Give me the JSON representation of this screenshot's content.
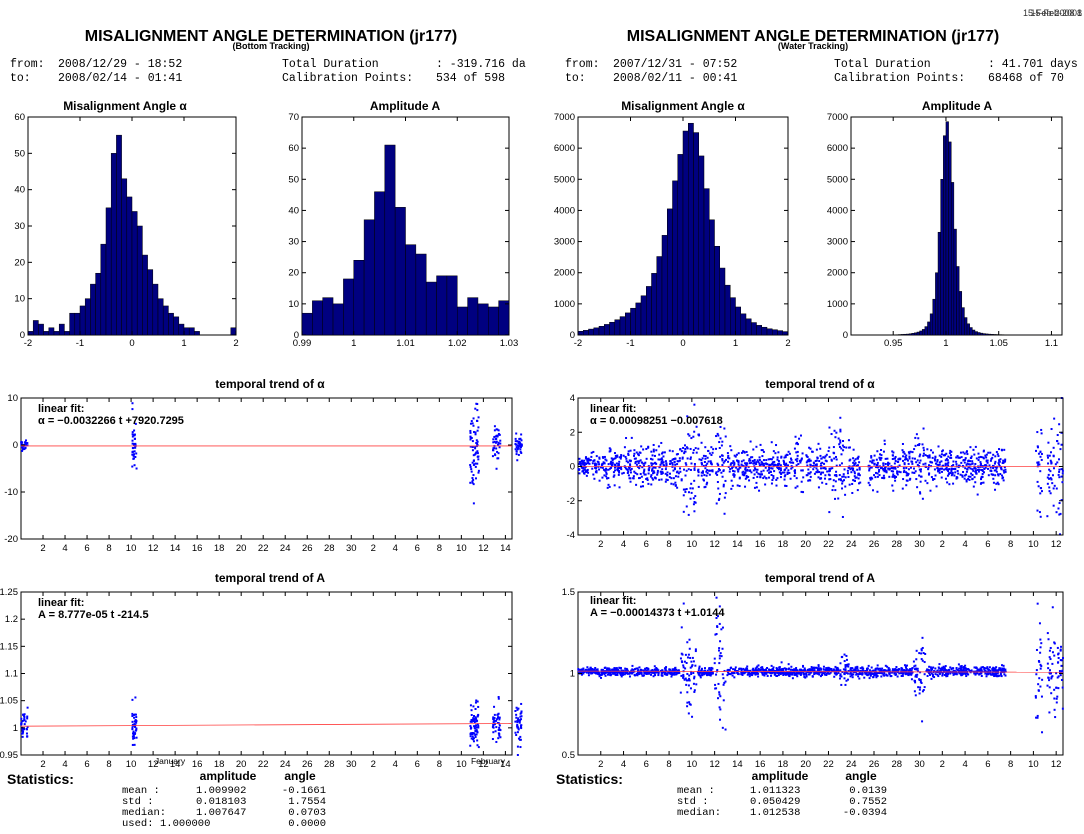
{
  "chart_data": [
    {
      "type": "report",
      "date": "15-Feb-2008",
      "title": "MISALIGNMENT ANGLE DETERMINATION (jr177)",
      "subtitle": "(Bottom Tracking)",
      "header": {
        "from_label": "from:",
        "from_value": "2008/12/29 - 18:52",
        "to_label": "to:",
        "to_value": "2008/02/14 - 01:41",
        "duration_label": "Total Duration",
        "duration_value": ": -319.716 da",
        "calib_label": "Calibration Points:",
        "calib_value": "534 of 598"
      },
      "histograms": [
        {
          "type": "bar",
          "title": "Misalignment Angle α",
          "xlim": [
            -2,
            2
          ],
          "ylim": [
            0,
            60
          ],
          "xticks": [
            -2,
            -1,
            0,
            1,
            2
          ],
          "xtick_labels": [
            "-2",
            "-1",
            "0",
            "1",
            "2"
          ],
          "yticks": [
            0,
            10,
            20,
            30,
            40,
            50,
            60
          ],
          "bin_start": -2,
          "bin_width": 0.1,
          "counts": [
            1,
            4,
            3,
            1,
            2,
            1,
            3,
            1,
            6,
            6,
            8,
            10,
            14,
            17,
            25,
            35,
            50,
            55,
            43,
            38,
            34,
            30,
            22,
            18,
            14,
            10,
            8,
            6,
            5,
            3,
            2,
            2,
            1,
            0,
            0,
            0,
            0,
            0,
            0,
            2
          ]
        },
        {
          "type": "bar",
          "title": "Amplitude A",
          "xlim": [
            0.99,
            1.03
          ],
          "ylim": [
            0,
            70
          ],
          "xticks": [
            0.99,
            1.0,
            1.01,
            1.02,
            1.03
          ],
          "xtick_labels": [
            "0.99",
            "1",
            "1.01",
            "1.02",
            "1.03"
          ],
          "yticks": [
            0,
            10,
            20,
            30,
            40,
            50,
            60,
            70
          ],
          "bin_start": 0.99,
          "bin_width": 0.002,
          "counts": [
            7,
            11,
            12,
            10,
            18,
            24,
            37,
            46,
            61,
            41,
            29,
            26,
            17,
            19,
            19,
            9,
            12,
            10,
            9,
            11,
            7
          ]
        }
      ],
      "trends": [
        {
          "type": "scatter",
          "title": "temporal trend of α",
          "fit_label": "linear fit:",
          "fit_equation": "α = −0.0032266 t +7920.7295",
          "ylim": [
            -20,
            10
          ],
          "yticks": [
            -20,
            -10,
            0,
            10
          ],
          "xtick_labels": [
            "2",
            "4",
            "6",
            "8",
            "10",
            "12",
            "14",
            "16",
            "18",
            "20",
            "22",
            "24",
            "26",
            "28",
            "30",
            "2",
            "4",
            "6",
            "8",
            "10",
            "12",
            "14"
          ],
          "fit_value": -0.2,
          "clusters": [
            {
              "x": 0.3,
              "spread": 0.6,
              "n": 35,
              "center": 0,
              "sd": 0.5
            },
            {
              "x": 10.3,
              "spread": 0.4,
              "n": 40,
              "center": 0,
              "sd": 2.5
            },
            {
              "x": 41.2,
              "spread": 0.8,
              "n": 70,
              "center": -1,
              "sd": 4.5
            },
            {
              "x": 43.2,
              "spread": 0.7,
              "n": 40,
              "center": 0,
              "sd": 2.2
            },
            {
              "x": 45.2,
              "spread": 0.6,
              "n": 40,
              "center": 0,
              "sd": 1.5
            }
          ]
        },
        {
          "type": "scatter",
          "title": "temporal trend of A",
          "fit_label": "linear fit:",
          "fit_equation": "A = 8.777e-05 t -214.5",
          "ylim": [
            0.95,
            1.25
          ],
          "yticks": [
            0.95,
            1.0,
            1.05,
            1.1,
            1.15,
            1.2,
            1.25
          ],
          "ytick_labels": [
            "0.95",
            "1",
            "1.05",
            "1.1",
            "1.15",
            "1.2",
            "1.25"
          ],
          "xtick_labels": [
            "2",
            "4",
            "6",
            "8",
            "10",
            "12",
            "14",
            "16",
            "18",
            "20",
            "22",
            "24",
            "26",
            "28",
            "30",
            "2",
            "4",
            "6",
            "8",
            "10",
            "12",
            "14"
          ],
          "month_labels": [
            "January",
            "February"
          ],
          "fit_start": 1.003,
          "fit_end": 1.008,
          "clusters": [
            {
              "x": 0.3,
              "spread": 0.6,
              "n": 35,
              "center": 1.01,
              "sd": 0.012
            },
            {
              "x": 10.3,
              "spread": 0.4,
              "n": 40,
              "center": 1.01,
              "sd": 0.02
            },
            {
              "x": 41.2,
              "spread": 0.8,
              "n": 70,
              "center": 1.005,
              "sd": 0.018
            },
            {
              "x": 43.2,
              "spread": 0.7,
              "n": 45,
              "center": 1.01,
              "sd": 0.018
            },
            {
              "x": 45.2,
              "spread": 0.6,
              "n": 45,
              "center": 1.01,
              "sd": 0.018
            }
          ]
        }
      ],
      "stats": {
        "heading": "Statistics:",
        "col_amplitude": "amplitude",
        "col_angle": "angle",
        "rows": [
          {
            "label": "mean   :",
            "amplitude": "1.009902",
            "angle": "-0.1661"
          },
          {
            "label": "std    :",
            "amplitude": "0.018103",
            "angle": "1.7554"
          },
          {
            "label": "median:",
            "amplitude": "1.007647",
            "angle": "0.0703"
          },
          {
            "label": "used:",
            "amplitude": "1.000000",
            "angle": "0.0000"
          }
        ]
      }
    },
    {
      "type": "report",
      "date": "15-Feb-2008 1",
      "title": "MISALIGNMENT ANGLE DETERMINATION (jr177)",
      "subtitle": "(Water Tracking)",
      "header": {
        "from_label": "from:",
        "from_value": "2007/12/31 - 07:52",
        "to_label": "to:",
        "to_value": "2008/02/11 - 00:41",
        "duration_label": "Total Duration",
        "duration_value": ": 41.701 days",
        "calib_label": "Calibration Points:",
        "calib_value": "68468 of 70"
      },
      "histograms": [
        {
          "type": "bar",
          "title": "Misalignment Angle α",
          "xlim": [
            -2,
            2
          ],
          "ylim": [
            0,
            7000
          ],
          "xticks": [
            -2,
            -1,
            0,
            1,
            2
          ],
          "xtick_labels": [
            "-2",
            "-1",
            "0",
            "1",
            "2"
          ],
          "yticks": [
            0,
            1000,
            2000,
            3000,
            4000,
            5000,
            6000,
            7000
          ],
          "bin_start": -2,
          "bin_width": 0.1,
          "counts": [
            120,
            150,
            190,
            230,
            280,
            340,
            410,
            490,
            590,
            710,
            860,
            1030,
            1260,
            1560,
            1980,
            2520,
            3200,
            4050,
            4950,
            5800,
            6550,
            6800,
            6500,
            5750,
            4700,
            3700,
            2850,
            2150,
            1600,
            1200,
            900,
            680,
            520,
            400,
            310,
            250,
            200,
            170,
            140,
            110
          ]
        },
        {
          "type": "bar",
          "title": "Amplitude A",
          "xlim": [
            0.91,
            1.11
          ],
          "ylim": [
            0,
            7000
          ],
          "xticks": [
            0.95,
            1.0,
            1.05,
            1.1
          ],
          "xtick_labels": [
            "0.95",
            "1",
            "1.05",
            "1.1"
          ],
          "yticks": [
            0,
            1000,
            2000,
            3000,
            4000,
            5000,
            6000,
            7000
          ],
          "bin_start": 0.91,
          "bin_width": 0.0025,
          "counts": [
            0,
            0,
            0,
            0,
            0,
            0,
            0,
            0,
            0,
            0,
            0,
            0,
            0,
            0,
            0,
            0,
            0,
            10,
            15,
            20,
            25,
            30,
            40,
            55,
            70,
            95,
            130,
            180,
            270,
            420,
            680,
            1150,
            2000,
            3300,
            5000,
            6400,
            6850,
            6200,
            4900,
            3400,
            2200,
            1400,
            880,
            560,
            360,
            240,
            160,
            110,
            80,
            60,
            45,
            35,
            28,
            22,
            18,
            15,
            12,
            10,
            8,
            7,
            6,
            5,
            4,
            4,
            3,
            3,
            3,
            2,
            2,
            2,
            2,
            2,
            1,
            1,
            1,
            1,
            1,
            1,
            1,
            1
          ]
        }
      ],
      "trends": [
        {
          "type": "scatter",
          "title": "temporal trend of α",
          "fit_label": "linear fit:",
          "fit_equation": "α = 0.00098251 −0.007618",
          "ylim": [
            -4,
            4
          ],
          "yticks": [
            -4,
            -2,
            0,
            2,
            4
          ],
          "xtick_labels": [
            "2",
            "4",
            "6",
            "8",
            "10",
            "12",
            "14",
            "16",
            "18",
            "20",
            "22",
            "24",
            "26",
            "28",
            "30",
            "2",
            "4",
            "6",
            "8",
            "10",
            "12"
          ],
          "fit_value": 0.0,
          "bands": [
            {
              "x0": 0.0,
              "x1": 1.9,
              "sd": 0.35
            },
            {
              "x0": 2.0,
              "x1": 3.9,
              "sd": 0.5
            },
            {
              "x0": 4.0,
              "x1": 7.9,
              "sd": 0.55
            },
            {
              "x0": 8.0,
              "x1": 9.0,
              "sd": 0.6
            },
            {
              "x0": 9.1,
              "x1": 10.7,
              "sd": 1.3
            },
            {
              "x0": 10.8,
              "x1": 11.9,
              "sd": 0.6
            },
            {
              "x0": 12.0,
              "x1": 13.0,
              "sd": 1.4
            },
            {
              "x0": 13.1,
              "x1": 18.9,
              "sd": 0.55
            },
            {
              "x0": 19.0,
              "x1": 19.8,
              "sd": 1.0
            },
            {
              "x0": 20.0,
              "x1": 21.9,
              "sd": 0.55
            },
            {
              "x0": 22.0,
              "x1": 23.6,
              "sd": 1.0
            },
            {
              "x0": 23.7,
              "x1": 24.9,
              "sd": 0.6
            },
            {
              "x0": 25.5,
              "x1": 29.4,
              "sd": 0.55
            },
            {
              "x0": 29.5,
              "x1": 30.4,
              "sd": 1.0
            },
            {
              "x0": 30.5,
              "x1": 37.6,
              "sd": 0.55
            },
            {
              "x0": 40.2,
              "x1": 40.8,
              "sd": 1.4
            },
            {
              "x0": 41.2,
              "x1": 42.6,
              "sd": 1.6
            },
            {
              "x0": 44.6,
              "x1": 45.0,
              "sd": 0.5
            }
          ]
        },
        {
          "type": "scatter",
          "title": "temporal trend of A",
          "fit_label": "linear fit:",
          "fit_equation": "A = −0.00014373 t +1.0144",
          "ylim": [
            0.5,
            1.5
          ],
          "yticks": [
            0.5,
            1.0,
            1.5
          ],
          "ytick_labels": [
            "0.5",
            "1",
            "1.5"
          ],
          "xtick_labels": [
            "2",
            "4",
            "6",
            "8",
            "10",
            "12",
            "14",
            "16",
            "18",
            "20",
            "22",
            "24",
            "26",
            "28",
            "30",
            "2",
            "4",
            "6",
            "8",
            "10",
            "12"
          ],
          "fit_start": 1.0144,
          "fit_end": 1.008,
          "bands": [
            {
              "x0": 0.0,
              "x1": 8.9,
              "sd": 0.012
            },
            {
              "x0": 9.0,
              "x1": 10.4,
              "sd": 0.12
            },
            {
              "x0": 10.5,
              "x1": 11.9,
              "sd": 0.015
            },
            {
              "x0": 12.0,
              "x1": 13.0,
              "sd": 0.18
            },
            {
              "x0": 13.1,
              "x1": 22.9,
              "sd": 0.015
            },
            {
              "x0": 23.0,
              "x1": 23.8,
              "sd": 0.04
            },
            {
              "x0": 23.9,
              "x1": 29.4,
              "sd": 0.015
            },
            {
              "x0": 29.5,
              "x1": 30.5,
              "sd": 0.09
            },
            {
              "x0": 30.6,
              "x1": 37.6,
              "sd": 0.015
            },
            {
              "x0": 40.2,
              "x1": 40.8,
              "sd": 0.16
            },
            {
              "x0": 41.2,
              "x1": 42.6,
              "sd": 0.15
            },
            {
              "x0": 44.6,
              "x1": 45.0,
              "sd": 0.012
            }
          ]
        }
      ],
      "stats": {
        "heading": "Statistics:",
        "col_amplitude": "amplitude",
        "col_angle": "angle",
        "rows": [
          {
            "label": "mean   :",
            "amplitude": "1.011323",
            "angle": "0.0139"
          },
          {
            "label": "std    :",
            "amplitude": "0.050429",
            "angle": "0.7552"
          },
          {
            "label": "median:",
            "amplitude": "1.012538",
            "angle": "-0.0394"
          }
        ]
      }
    }
  ]
}
